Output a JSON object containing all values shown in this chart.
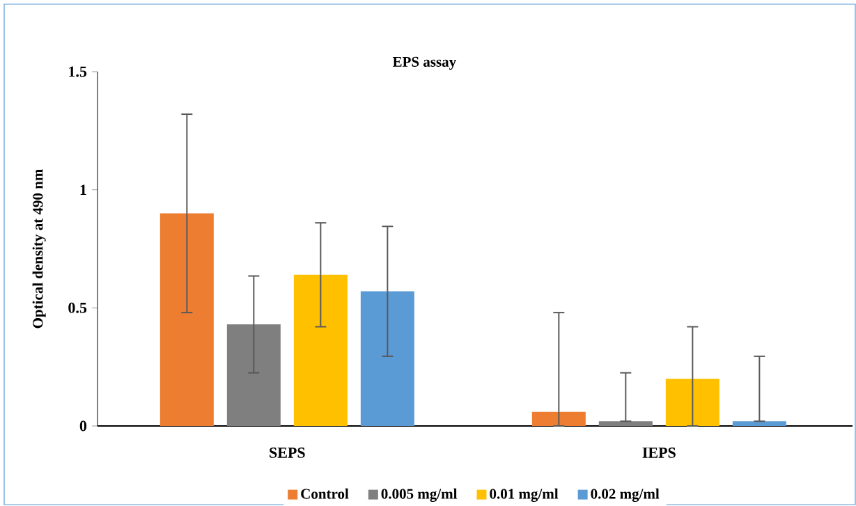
{
  "chart_data": {
    "type": "bar",
    "title": "EPS assay",
    "ylabel": "Optical density at 490 nm",
    "categories": [
      "SEPS",
      "IEPS"
    ],
    "series": [
      {
        "name": "Control",
        "color": "#ed7d31",
        "values": [
          0.9,
          0.06
        ],
        "errors": [
          [
            0.48,
            1.32
          ],
          [
            0,
            0.48
          ]
        ]
      },
      {
        "name": "0.005 mg/ml",
        "color": "#7f7f7f",
        "values": [
          0.43,
          0.02
        ],
        "errors": [
          [
            0.225,
            0.635
          ],
          [
            0.02,
            0.225
          ]
        ]
      },
      {
        "name": "0.01 mg/ml",
        "color": "#ffc000",
        "values": [
          0.64,
          0.2
        ],
        "errors": [
          [
            0.42,
            0.86
          ],
          [
            0,
            0.42
          ]
        ]
      },
      {
        "name": "0.02 mg/ml",
        "color": "#5b9bd5",
        "values": [
          0.57,
          0.02
        ],
        "errors": [
          [
            0.295,
            0.845
          ],
          [
            0.02,
            0.295
          ]
        ]
      }
    ],
    "ylim": [
      0,
      1.5
    ],
    "yticks": [
      0,
      0.5,
      1,
      1.5
    ],
    "grid": false,
    "legend": "bottom"
  }
}
